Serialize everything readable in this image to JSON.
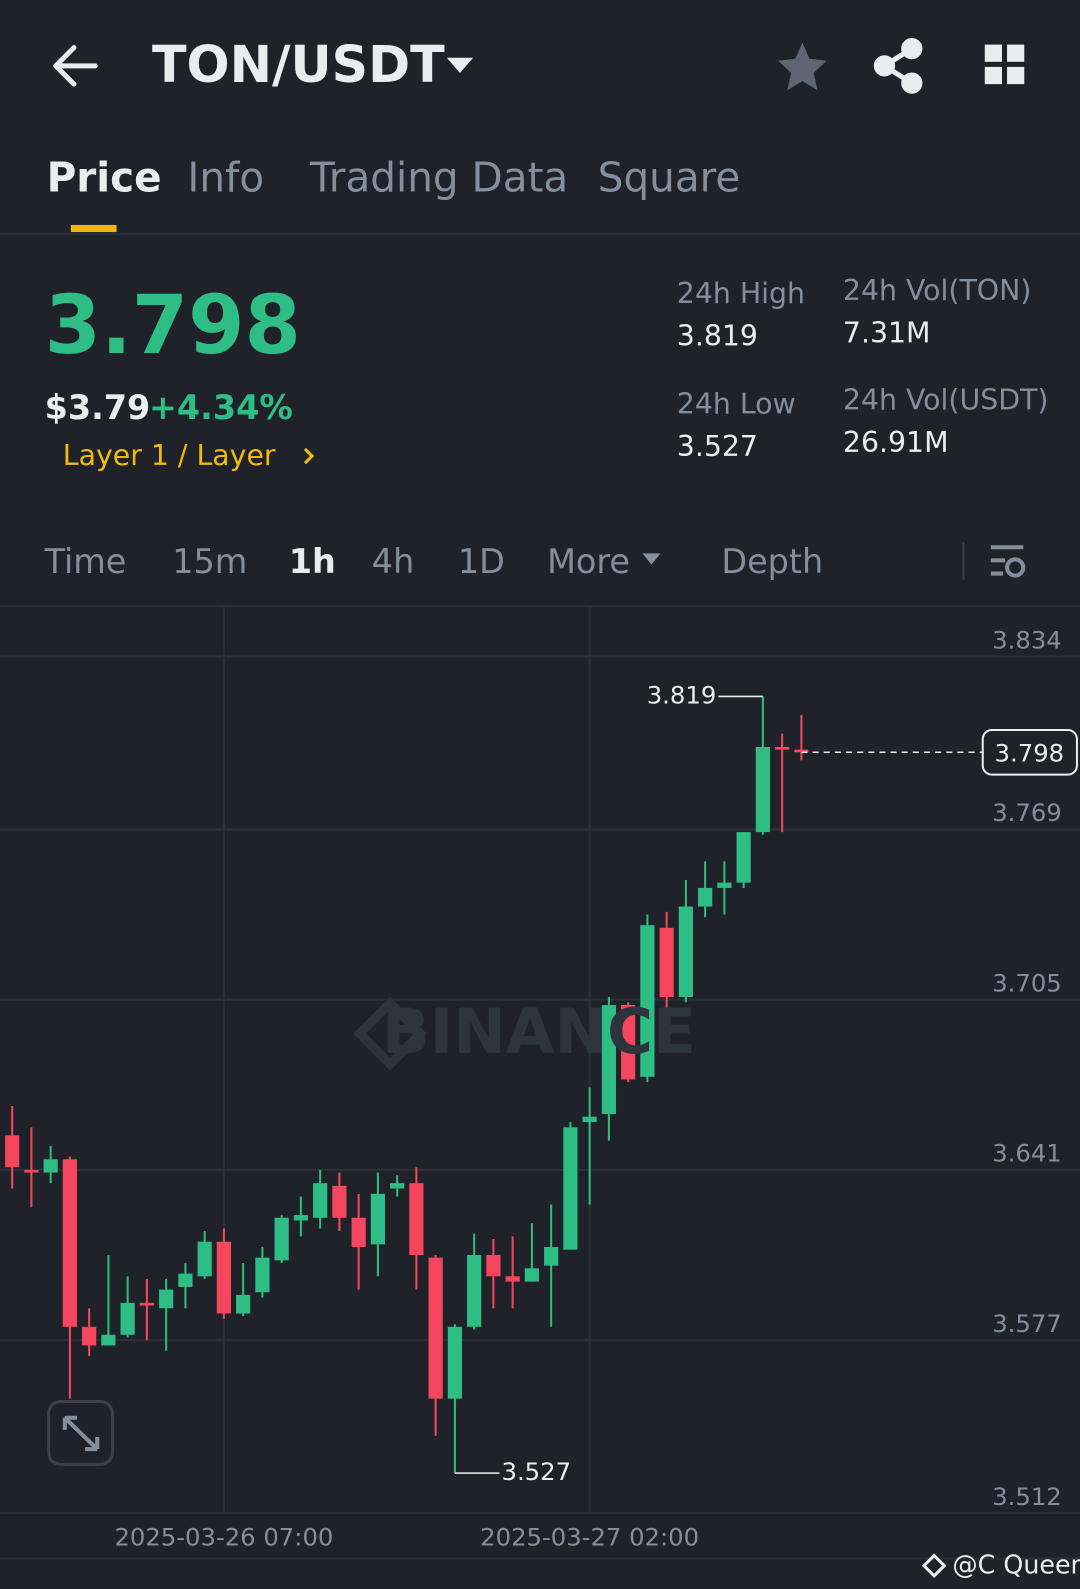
{
  "header": {
    "pair": "TON/USDT"
  },
  "tabs": [
    "Price",
    "Info",
    "Trading Data",
    "Square"
  ],
  "price": {
    "last": "3.798",
    "usd": "$3.79",
    "change": "+4.34%",
    "tag": "Layer 1 / Layer"
  },
  "stats": [
    {
      "label": "24h High",
      "value": "3.819"
    },
    {
      "label": "24h Vol(TON)",
      "value": "7.31M"
    },
    {
      "label": "24h Low",
      "value": "3.527"
    },
    {
      "label": "24h Vol(USDT)",
      "value": "26.91M"
    }
  ],
  "intervals": [
    "Time",
    "15m",
    "1h",
    "4h",
    "1D",
    "More",
    "Depth"
  ],
  "watermark": "BINANCE",
  "credit": "@C Queen",
  "chart_data": {
    "type": "candlestick",
    "up_color": "#2ebd85",
    "down_color": "#f6465d",
    "grid": true,
    "open": [
      3.654,
      3.641,
      3.64,
      3.645,
      3.582,
      3.575,
      3.579,
      3.591,
      3.589,
      3.597,
      3.601,
      3.614,
      3.587,
      3.595,
      3.607,
      3.622,
      3.623,
      3.635,
      3.623,
      3.613,
      3.634,
      3.636,
      3.608,
      3.555,
      3.582,
      3.609,
      3.601,
      3.599,
      3.605,
      3.611,
      3.659,
      3.662,
      3.703,
      3.676,
      3.732,
      3.706,
      3.74,
      3.747,
      3.749,
      3.768,
      3.8,
      3.799
    ],
    "high": [
      3.665,
      3.657,
      3.65,
      3.646,
      3.589,
      3.609,
      3.601,
      3.6,
      3.6,
      3.606,
      3.618,
      3.619,
      3.606,
      3.612,
      3.624,
      3.631,
      3.641,
      3.64,
      3.632,
      3.64,
      3.639,
      3.642,
      3.609,
      3.583,
      3.617,
      3.615,
      3.616,
      3.621,
      3.628,
      3.659,
      3.672,
      3.706,
      3.704,
      3.737,
      3.738,
      3.75,
      3.757,
      3.757,
      3.768,
      3.819,
      3.805,
      3.812
    ],
    "low": [
      3.634,
      3.627,
      3.636,
      3.555,
      3.571,
      3.575,
      3.578,
      3.577,
      3.573,
      3.589,
      3.6,
      3.585,
      3.586,
      3.593,
      3.606,
      3.616,
      3.619,
      3.618,
      3.596,
      3.601,
      3.631,
      3.596,
      3.541,
      3.527,
      3.581,
      3.589,
      3.589,
      3.599,
      3.582,
      3.611,
      3.628,
      3.652,
      3.674,
      3.674,
      3.698,
      3.704,
      3.736,
      3.737,
      3.747,
      3.767,
      3.768,
      3.795
    ],
    "close": [
      3.642,
      3.64,
      3.645,
      3.582,
      3.575,
      3.579,
      3.591,
      3.59,
      3.596,
      3.602,
      3.614,
      3.587,
      3.594,
      3.608,
      3.623,
      3.624,
      3.636,
      3.623,
      3.612,
      3.632,
      3.636,
      3.609,
      3.555,
      3.582,
      3.609,
      3.601,
      3.599,
      3.604,
      3.612,
      3.657,
      3.661,
      3.703,
      3.675,
      3.733,
      3.706,
      3.74,
      3.747,
      3.749,
      3.768,
      3.8,
      3.799,
      3.798
    ],
    "ylim": [
      3.512,
      3.853
    ],
    "yticks": [
      3.512,
      3.577,
      3.641,
      3.705,
      3.769,
      3.834
    ],
    "xticks": [
      {
        "value": 11,
        "label": "2025-03-26 07:00"
      },
      {
        "value": 30,
        "label": "2025-03-27 02:00"
      }
    ],
    "annotations": {
      "max": 3.819,
      "min": 3.527,
      "last": 3.798
    }
  }
}
